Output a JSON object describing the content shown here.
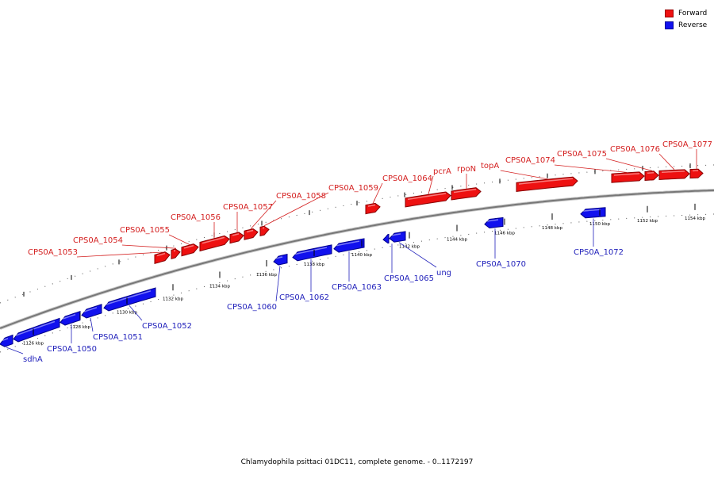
{
  "colors": {
    "forward": "#ee1111",
    "reverse": "#1111ee",
    "backbone": "#777777",
    "label_forward": "#d42020",
    "label_reverse": "#2222bb"
  },
  "legend": [
    {
      "key": "forward",
      "label": "Forward"
    },
    {
      "key": "reverse",
      "label": "Reverse"
    }
  ],
  "footer": "Chlamydophila psittaci 01DC11, complete genome. - 0..1172197",
  "axis": {
    "unit": "kbp",
    "ticks": [
      {
        "label": "1126 kbp"
      },
      {
        "label": "1128 kbp"
      },
      {
        "label": "1130 kbp"
      },
      {
        "label": "1132 kbp"
      },
      {
        "label": "1134 kbp"
      },
      {
        "label": "1136 kbp"
      },
      {
        "label": "1138 kbp"
      },
      {
        "label": "1140 kbp"
      },
      {
        "label": "1142 kbp"
      },
      {
        "label": "1144 kbp"
      },
      {
        "label": "1146 kbp"
      },
      {
        "label": "1148 kbp"
      },
      {
        "label": "1150 kbp"
      },
      {
        "label": "1152 kbp"
      },
      {
        "label": "1154 kbp"
      }
    ]
  },
  "forward_genes": [
    {
      "name": "CPS0A_1053"
    },
    {
      "name": "CPS0A_1054"
    },
    {
      "name": "CPS0A_1055"
    },
    {
      "name": "CPS0A_1056"
    },
    {
      "name": "CPS0A_1057"
    },
    {
      "name": "CPS0A_1058"
    },
    {
      "name": "CPS0A_1059"
    },
    {
      "name": "CPS0A_1064"
    },
    {
      "name": "pcrA"
    },
    {
      "name": "rpoN"
    },
    {
      "name": "topA"
    },
    {
      "name": "CPS0A_1074"
    },
    {
      "name": "CPS0A_1075"
    },
    {
      "name": "CPS0A_1076"
    },
    {
      "name": "CPS0A_1077"
    }
  ],
  "reverse_genes": [
    {
      "name": "sdhA"
    },
    {
      "name": "CPS0A_1050"
    },
    {
      "name": "CPS0A_1051"
    },
    {
      "name": "CPS0A_1052"
    },
    {
      "name": "CPS0A_1060"
    },
    {
      "name": "CPS0A_1062"
    },
    {
      "name": "CPS0A_1063"
    },
    {
      "name": "CPS0A_1065"
    },
    {
      "name": "ung"
    },
    {
      "name": "CPS0A_1070"
    },
    {
      "name": "CPS0A_1072"
    }
  ]
}
